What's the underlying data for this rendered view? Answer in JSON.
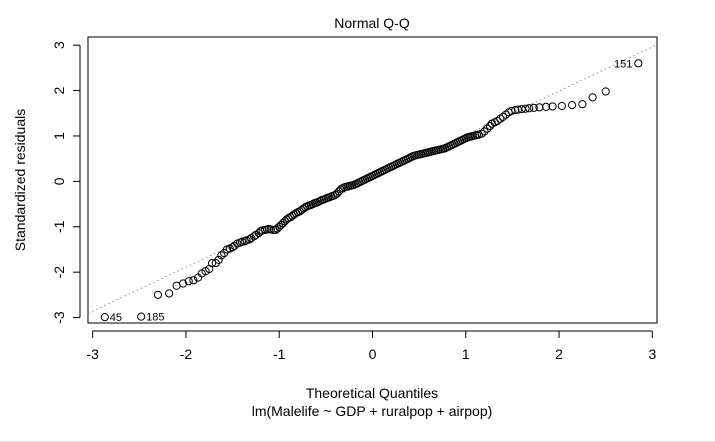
{
  "chart_data": {
    "type": "scatter",
    "title": "Normal Q-Q",
    "xlabel": "Theoretical Quantiles",
    "subtitle": "lm(Malelife ~ GDP + ruralpop + airpop)",
    "ylabel": "Standardized residuals",
    "xlim": [
      -3.05,
      3.05
    ],
    "ylim": [
      -3.12,
      3.18
    ],
    "xticks": [
      -3,
      -2,
      -1,
      0,
      1,
      2,
      3
    ],
    "yticks": [
      -3,
      -2,
      -1,
      0,
      1,
      2,
      3
    ],
    "reference_line": {
      "slope": 0.97,
      "intercept": 0.05,
      "style": "dotted",
      "color": "#888888"
    },
    "labeled_points": [
      {
        "label": "45",
        "x": -2.87,
        "y": -2.99
      },
      {
        "label": "185",
        "x": -2.48,
        "y": -2.98
      },
      {
        "label": "151",
        "x": 2.85,
        "y": 2.6
      }
    ],
    "points": [
      [
        -2.87,
        -2.99
      ],
      [
        -2.48,
        -2.98
      ],
      [
        -2.3,
        -2.5
      ],
      [
        -2.18,
        -2.47
      ],
      [
        -2.1,
        -2.3
      ],
      [
        -2.03,
        -2.25
      ],
      [
        -1.97,
        -2.2
      ],
      [
        -1.92,
        -2.18
      ],
      [
        -1.87,
        -2.12
      ],
      [
        -1.83,
        -2.03
      ],
      [
        -1.79,
        -1.98
      ],
      [
        -1.75,
        -1.93
      ],
      [
        -1.72,
        -1.8
      ],
      [
        -1.68,
        -1.8
      ],
      [
        -1.65,
        -1.73
      ],
      [
        -1.62,
        -1.63
      ],
      [
        -1.59,
        -1.58
      ],
      [
        -1.56,
        -1.5
      ],
      [
        -1.53,
        -1.48
      ],
      [
        -1.5,
        -1.45
      ],
      [
        -1.48,
        -1.42
      ],
      [
        -1.45,
        -1.37
      ],
      [
        -1.42,
        -1.35
      ],
      [
        -1.4,
        -1.33
      ],
      [
        -1.37,
        -1.32
      ],
      [
        -1.35,
        -1.3
      ],
      [
        -1.32,
        -1.28
      ],
      [
        -1.3,
        -1.25
      ],
      [
        -1.27,
        -1.21
      ],
      [
        -1.25,
        -1.18
      ],
      [
        -1.22,
        -1.14
      ],
      [
        -1.2,
        -1.1
      ],
      [
        -1.18,
        -1.08
      ],
      [
        -1.15,
        -1.07
      ],
      [
        -1.13,
        -1.06
      ],
      [
        -1.11,
        -1.05
      ],
      [
        -1.09,
        -1.06
      ],
      [
        -1.06,
        -1.07
      ],
      [
        -1.04,
        -1.07
      ],
      [
        -1.02,
        -1.04
      ],
      [
        -1.0,
        -1.0
      ],
      [
        -0.98,
        -0.96
      ],
      [
        -0.96,
        -0.92
      ],
      [
        -0.94,
        -0.88
      ],
      [
        -0.92,
        -0.84
      ],
      [
        -0.9,
        -0.81
      ],
      [
        -0.88,
        -0.79
      ],
      [
        -0.86,
        -0.76
      ],
      [
        -0.84,
        -0.73
      ],
      [
        -0.82,
        -0.7
      ],
      [
        -0.8,
        -0.68
      ],
      [
        -0.78,
        -0.66
      ],
      [
        -0.76,
        -0.63
      ],
      [
        -0.74,
        -0.6
      ],
      [
        -0.72,
        -0.57
      ],
      [
        -0.7,
        -0.55
      ],
      [
        -0.68,
        -0.53
      ],
      [
        -0.66,
        -0.52
      ],
      [
        -0.64,
        -0.5
      ],
      [
        -0.62,
        -0.48
      ],
      [
        -0.6,
        -0.47
      ],
      [
        -0.58,
        -0.45
      ],
      [
        -0.56,
        -0.43
      ],
      [
        -0.54,
        -0.41
      ],
      [
        -0.52,
        -0.4
      ],
      [
        -0.5,
        -0.38
      ],
      [
        -0.48,
        -0.36
      ],
      [
        -0.46,
        -0.35
      ],
      [
        -0.44,
        -0.33
      ],
      [
        -0.42,
        -0.32
      ],
      [
        -0.4,
        -0.3
      ],
      [
        -0.38,
        -0.27
      ],
      [
        -0.36,
        -0.22
      ],
      [
        -0.34,
        -0.18
      ],
      [
        -0.32,
        -0.15
      ],
      [
        -0.3,
        -0.13
      ],
      [
        -0.28,
        -0.12
      ],
      [
        -0.26,
        -0.11
      ],
      [
        -0.24,
        -0.1
      ],
      [
        -0.22,
        -0.09
      ],
      [
        -0.2,
        -0.08
      ],
      [
        -0.18,
        -0.06
      ],
      [
        -0.16,
        -0.04
      ],
      [
        -0.14,
        -0.02
      ],
      [
        -0.12,
        0.0
      ],
      [
        -0.1,
        0.02
      ],
      [
        -0.08,
        0.04
      ],
      [
        -0.06,
        0.06
      ],
      [
        -0.04,
        0.08
      ],
      [
        -0.02,
        0.1
      ],
      [
        0.0,
        0.12
      ],
      [
        0.02,
        0.14
      ],
      [
        0.04,
        0.16
      ],
      [
        0.06,
        0.18
      ],
      [
        0.08,
        0.2
      ],
      [
        0.1,
        0.22
      ],
      [
        0.12,
        0.24
      ],
      [
        0.14,
        0.26
      ],
      [
        0.16,
        0.28
      ],
      [
        0.18,
        0.3
      ],
      [
        0.2,
        0.32
      ],
      [
        0.22,
        0.34
      ],
      [
        0.24,
        0.36
      ],
      [
        0.26,
        0.38
      ],
      [
        0.28,
        0.4
      ],
      [
        0.3,
        0.42
      ],
      [
        0.32,
        0.44
      ],
      [
        0.34,
        0.46
      ],
      [
        0.36,
        0.48
      ],
      [
        0.38,
        0.5
      ],
      [
        0.4,
        0.52
      ],
      [
        0.42,
        0.54
      ],
      [
        0.44,
        0.56
      ],
      [
        0.46,
        0.57
      ],
      [
        0.48,
        0.58
      ],
      [
        0.5,
        0.59
      ],
      [
        0.52,
        0.6
      ],
      [
        0.54,
        0.61
      ],
      [
        0.56,
        0.62
      ],
      [
        0.58,
        0.63
      ],
      [
        0.6,
        0.64
      ],
      [
        0.62,
        0.65
      ],
      [
        0.64,
        0.66
      ],
      [
        0.66,
        0.67
      ],
      [
        0.68,
        0.68
      ],
      [
        0.7,
        0.69
      ],
      [
        0.72,
        0.7
      ],
      [
        0.74,
        0.71
      ],
      [
        0.76,
        0.72
      ],
      [
        0.78,
        0.73
      ],
      [
        0.8,
        0.75
      ],
      [
        0.82,
        0.77
      ],
      [
        0.84,
        0.79
      ],
      [
        0.86,
        0.81
      ],
      [
        0.88,
        0.83
      ],
      [
        0.9,
        0.85
      ],
      [
        0.92,
        0.87
      ],
      [
        0.94,
        0.89
      ],
      [
        0.96,
        0.91
      ],
      [
        0.98,
        0.93
      ],
      [
        1.0,
        0.95
      ],
      [
        1.02,
        0.97
      ],
      [
        1.04,
        0.98
      ],
      [
        1.06,
        0.99
      ],
      [
        1.08,
        1.0
      ],
      [
        1.1,
        1.01
      ],
      [
        1.12,
        1.02
      ],
      [
        1.14,
        1.03
      ],
      [
        1.17,
        1.05
      ],
      [
        1.2,
        1.1
      ],
      [
        1.23,
        1.16
      ],
      [
        1.26,
        1.22
      ],
      [
        1.28,
        1.27
      ],
      [
        1.31,
        1.3
      ],
      [
        1.34,
        1.33
      ],
      [
        1.37,
        1.38
      ],
      [
        1.4,
        1.42
      ],
      [
        1.43,
        1.47
      ],
      [
        1.46,
        1.52
      ],
      [
        1.49,
        1.55
      ],
      [
        1.53,
        1.57
      ],
      [
        1.56,
        1.58
      ],
      [
        1.6,
        1.59
      ],
      [
        1.64,
        1.6
      ],
      [
        1.68,
        1.61
      ],
      [
        1.73,
        1.62
      ],
      [
        1.79,
        1.63
      ],
      [
        1.86,
        1.64
      ],
      [
        1.93,
        1.65
      ],
      [
        2.03,
        1.66
      ],
      [
        2.14,
        1.68
      ],
      [
        2.25,
        1.7
      ],
      [
        2.36,
        1.85
      ],
      [
        2.5,
        1.98
      ],
      [
        2.85,
        2.6
      ]
    ]
  }
}
